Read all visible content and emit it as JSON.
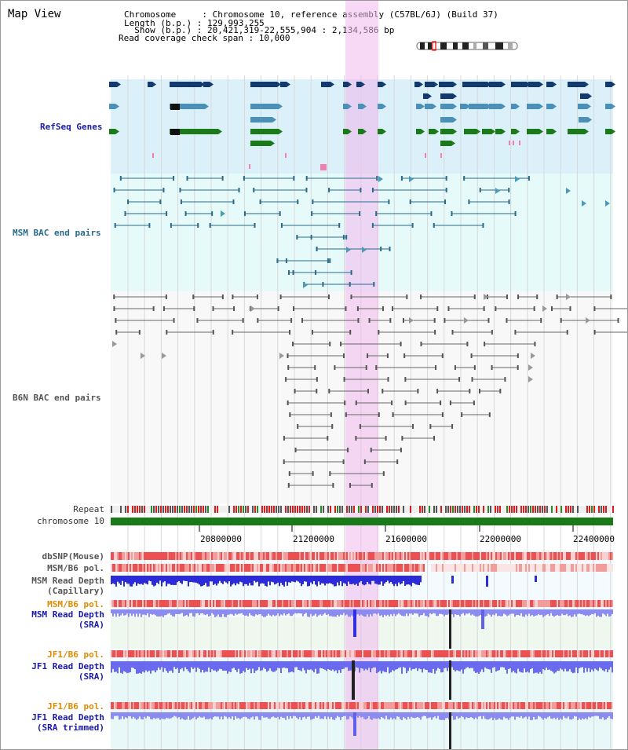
{
  "title": "Map View",
  "header": {
    "line1": "Chromosome     : Chromosome 10, reference assembly (C57BL/6J) (Build 37)",
    "line2": "Length (b.p.) : 129,993,255",
    "line3": "  Show (b.p.) : 20,421,319-22,555,904 : 2,134,586 bp",
    "line4": "Read coverage check span : 10,000"
  },
  "tracks": {
    "refseq": "RefSeq Genes",
    "msm_bac": "MSM BAC end pairs",
    "b6n_bac": "B6N BAC end pairs",
    "repeat": "Repeat",
    "chromosome": "chromosome 10",
    "dbsnp": "dbSNP(Mouse)",
    "msm_b6_pol_1": "MSM/B6 pol.",
    "msm_depth_cap_1": "MSM Read Depth",
    "msm_depth_cap_2": "(Capillary)",
    "msm_b6_pol_2": "MSM/B6 pol.",
    "msm_depth_sra_1": "MSM Read Depth",
    "msm_depth_sra_2": "(SRA)",
    "jf1_b6_pol_1": "JF1/B6 pol.",
    "jf1_depth_sra_1": "JF1 Read Depth",
    "jf1_depth_sra_2": "(SRA)",
    "jf1_b6_pol_2": "JF1/B6 pol.",
    "jf1_depth_trim_1": "JF1 Read Depth",
    "jf1_depth_trim_2": "(SRA trimmed)"
  },
  "axis": {
    "ticks": [
      "20800000",
      "21200000",
      "21600000",
      "22000000",
      "22400000"
    ]
  },
  "colors": {
    "refseq_bg": "#dcf0fa",
    "msm_bac_bg": "#e6fafa",
    "b6n_bac_bg": "#f8f8f8",
    "highlight": "#f4d2f0",
    "chromosome": "#1a7a1a",
    "dark_navy": "#123a6e",
    "mid_blue": "#4a90b8",
    "pale_blue": "#9ec8e0",
    "green": "#1a7a1a",
    "pink": "#f080b0",
    "depth_blue": "#2b2bd9",
    "depth_light": "#8c8cf0",
    "pol_red": "#e83030",
    "pol_light": "#f6b0b0",
    "orange": "#e08a00"
  }
}
